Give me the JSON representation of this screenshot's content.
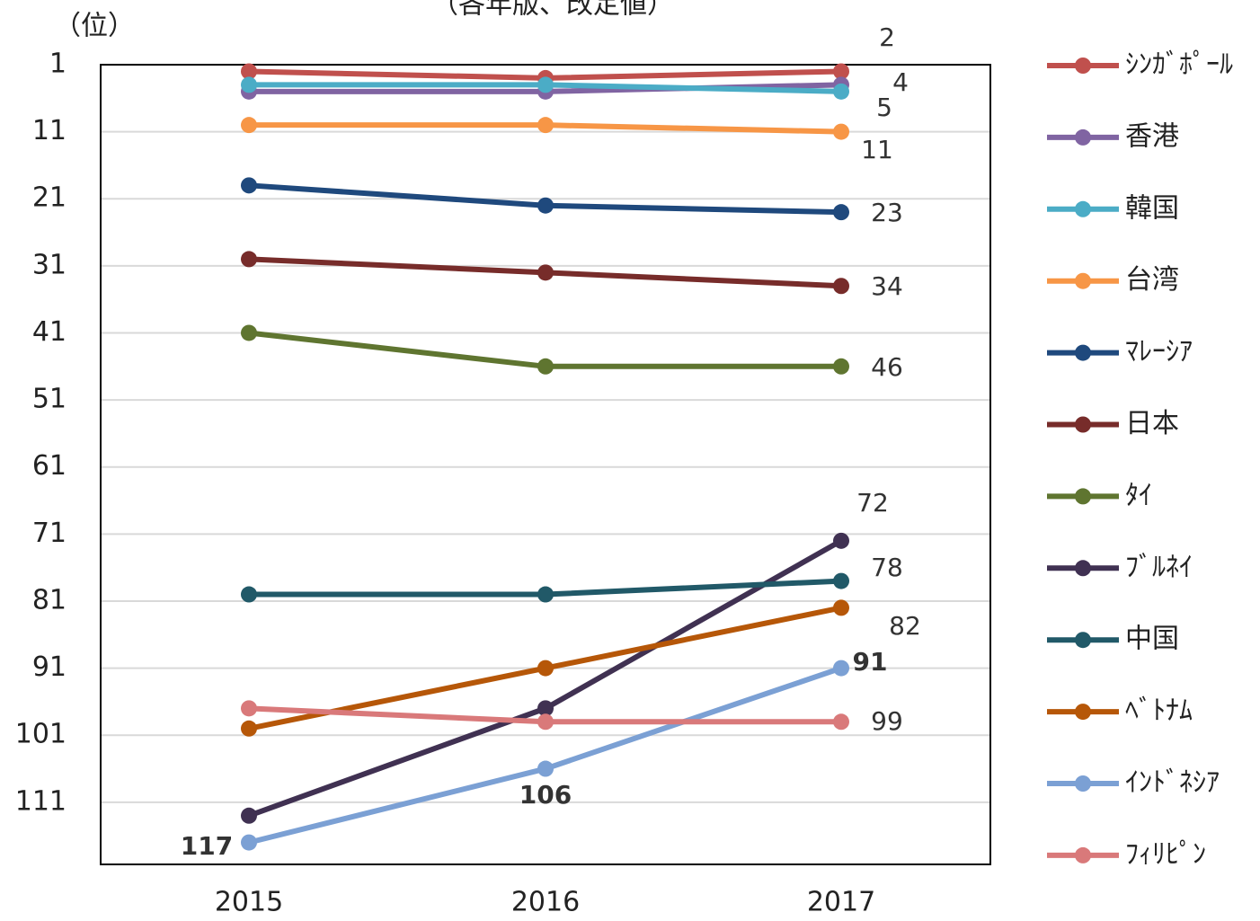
{
  "chart_data": {
    "type": "line",
    "title": "（各年版、改定値）",
    "y_label": "（位）",
    "categories": [
      "2015",
      "2016",
      "2017"
    ],
    "ylim": [
      1,
      120
    ],
    "yticks": [
      1,
      11,
      21,
      31,
      41,
      51,
      61,
      71,
      81,
      91,
      101,
      111
    ],
    "y_inverted": true,
    "grid": true,
    "legend": "right",
    "series": [
      {
        "name": "ｼﾝｶﾞﾎﾟｰﾙ",
        "color": "#c0504d",
        "values": [
          2,
          3,
          2
        ],
        "data_labels": "last"
      },
      {
        "name": "香港",
        "color": "#8064a2",
        "values": [
          5,
          5,
          4
        ],
        "data_labels": "last"
      },
      {
        "name": "韓国",
        "color": "#4bacc6",
        "values": [
          4,
          4,
          5
        ],
        "data_labels": "last"
      },
      {
        "name": "台湾",
        "color": "#f79646",
        "values": [
          10,
          10,
          11
        ],
        "data_labels": "last"
      },
      {
        "name": "ﾏﾚｰｼｱ",
        "color": "#1f497d",
        "values": [
          19,
          22,
          23
        ],
        "data_labels": "last"
      },
      {
        "name": "日本",
        "color": "#772c2a",
        "values": [
          30,
          32,
          34
        ],
        "data_labels": "last"
      },
      {
        "name": "ﾀｲ",
        "color": "#5f7530",
        "values": [
          41,
          46,
          46
        ],
        "data_labels": "last"
      },
      {
        "name": "ﾌﾞﾙﾈｲ",
        "color": "#403152",
        "values": [
          113,
          97,
          72
        ],
        "data_labels": "last"
      },
      {
        "name": "中国",
        "color": "#215968",
        "values": [
          80,
          80,
          78
        ],
        "data_labels": "last"
      },
      {
        "name": "ﾍﾞﾄﾅﾑ",
        "color": "#b65708",
        "values": [
          100,
          91,
          82
        ],
        "data_labels": "last"
      },
      {
        "name": "ｲﾝﾄﾞﾈｼｱ",
        "color": "#7ba0d4",
        "values": [
          117,
          106,
          91
        ],
        "data_labels": "all",
        "bold_labels": true
      },
      {
        "name": "ﾌｨﾘﾋﾟﾝ",
        "color": "#d9797a",
        "values": [
          97,
          99,
          99
        ],
        "data_labels": "last"
      }
    ]
  }
}
